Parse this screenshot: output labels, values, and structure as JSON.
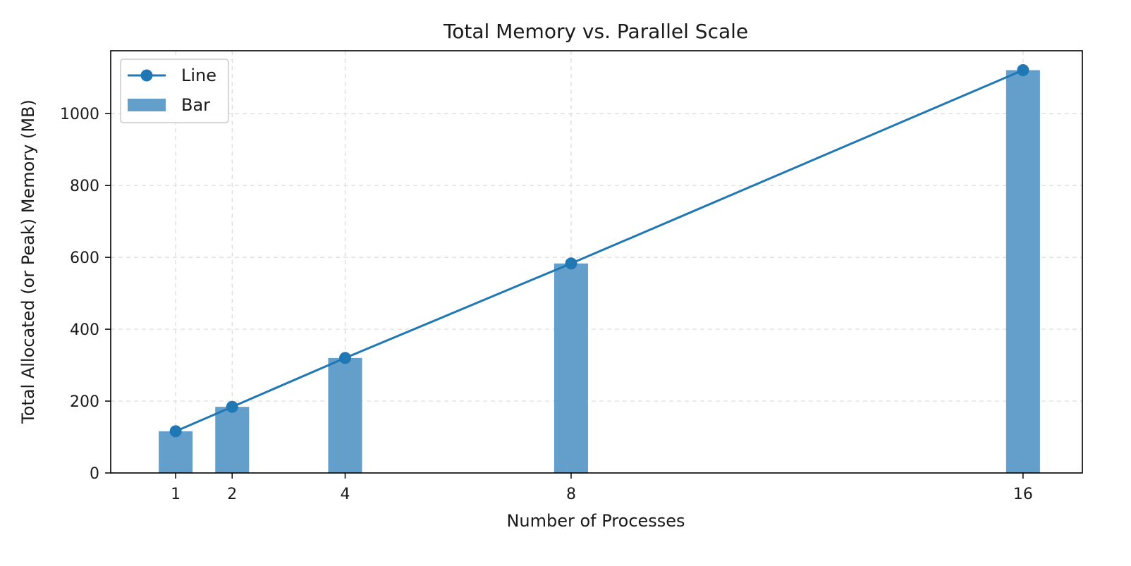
{
  "chart_data": {
    "type": "bar",
    "title": "Total Memory vs. Parallel Scale",
    "xlabel": "Number of Processes",
    "ylabel": "Total Allocated (or Peak) Memory (MB)",
    "x": [
      1,
      2,
      4,
      8,
      16
    ],
    "x_tick_labels": [
      "1",
      "2",
      "4",
      "8",
      "16"
    ],
    "xlim": [
      -0.15,
      17.05
    ],
    "ylim": [
      0,
      1175
    ],
    "y_ticks": [
      0,
      200,
      400,
      600,
      800,
      1000
    ],
    "y_tick_labels": [
      "0",
      "200",
      "400",
      "600",
      "800",
      "1000"
    ],
    "grid": true,
    "legend_position": "top-left",
    "series": [
      {
        "name": "Line",
        "kind": "line",
        "marker": "circle",
        "color": "#1f77b4",
        "values": [
          116,
          184,
          320,
          583,
          1121
        ]
      },
      {
        "name": "Bar",
        "kind": "bar",
        "color": "#649fcb",
        "bar_width": 0.6,
        "values": [
          116,
          184,
          320,
          583,
          1121
        ]
      }
    ]
  }
}
